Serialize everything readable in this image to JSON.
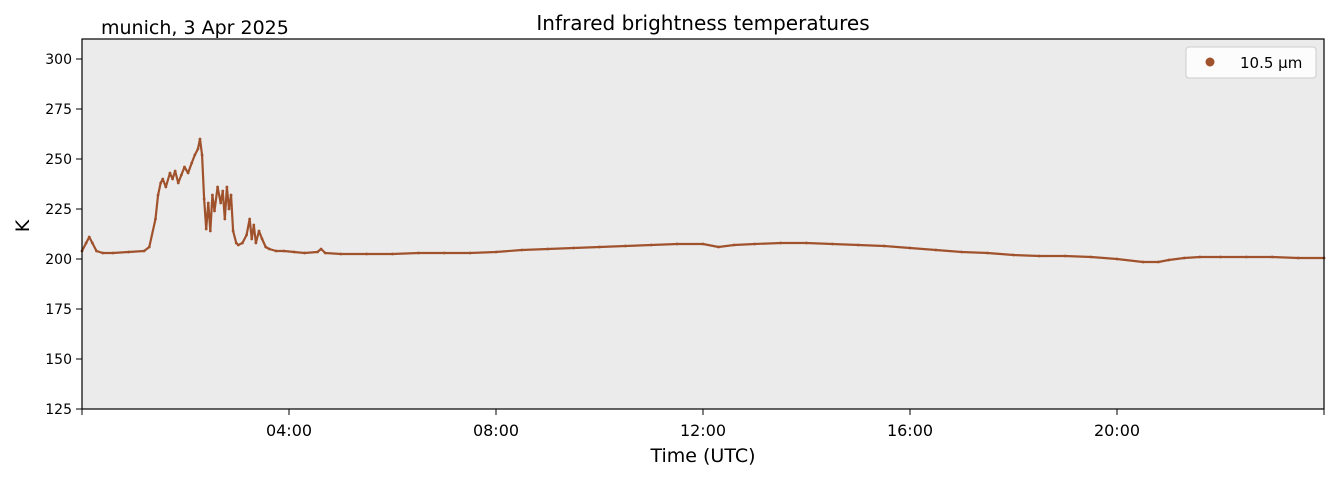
{
  "chart_data": {
    "type": "scatter",
    "title": "Infrared brightness temperatures",
    "location_date": "munich, 3 Apr 2025",
    "xlabel": "Time (UTC)",
    "ylabel": "K",
    "x_unit": "hours UTC",
    "xlim": [
      0,
      24
    ],
    "ylim": [
      125,
      310
    ],
    "x_ticks": [
      4,
      8,
      12,
      16,
      20
    ],
    "x_tick_labels": [
      "04:00",
      "08:00",
      "12:00",
      "16:00",
      "20:00"
    ],
    "y_ticks": [
      125,
      150,
      175,
      200,
      225,
      250,
      275,
      300
    ],
    "y_tick_labels": [
      "125",
      "150",
      "175",
      "200",
      "225",
      "250",
      "275",
      "300"
    ],
    "grid": false,
    "legend_position": "top-right",
    "background_color": "#ebebeb",
    "series": [
      {
        "name": "10.5 µm",
        "color": "#a0522d",
        "x": [
          0,
          0.08,
          0.14,
          0.2,
          0.28,
          0.4,
          0.6,
          0.9,
          1.2,
          1.3,
          1.42,
          1.47,
          1.52,
          1.56,
          1.62,
          1.7,
          1.75,
          1.8,
          1.86,
          1.92,
          1.98,
          2.05,
          2.12,
          2.18,
          2.24,
          2.28,
          2.32,
          2.36,
          2.4,
          2.44,
          2.48,
          2.52,
          2.56,
          2.62,
          2.68,
          2.72,
          2.76,
          2.8,
          2.84,
          2.88,
          2.92,
          2.98,
          3.02,
          3.1,
          3.18,
          3.24,
          3.28,
          3.32,
          3.36,
          3.42,
          3.48,
          3.55,
          3.62,
          3.75,
          3.9,
          4.1,
          4.3,
          4.55,
          4.62,
          4.7,
          5.0,
          5.5,
          6.0,
          6.5,
          7.0,
          7.5,
          8.0,
          8.5,
          9.0,
          9.5,
          10.0,
          10.5,
          11.0,
          11.5,
          12.0,
          12.3,
          12.6,
          13.0,
          13.5,
          14.0,
          14.5,
          15.0,
          15.5,
          16.0,
          16.5,
          17.0,
          17.5,
          18.0,
          18.5,
          19.0,
          19.5,
          20.0,
          20.5,
          20.8,
          21.0,
          21.3,
          21.6,
          22.0,
          22.5,
          23.0,
          23.5,
          24.0
        ],
        "y": [
          204,
          208,
          211,
          208,
          204,
          203,
          203,
          203.5,
          204,
          206,
          220,
          232,
          238,
          240,
          236,
          243,
          240,
          244,
          238,
          242,
          246,
          243,
          248,
          252,
          255,
          260,
          252,
          230,
          215,
          228,
          214,
          232,
          224,
          236,
          228,
          234,
          220,
          236,
          225,
          232,
          214,
          208,
          207,
          208,
          212,
          220,
          210,
          217,
          208,
          214,
          210,
          206,
          205,
          204,
          204,
          203.5,
          203,
          203.5,
          205,
          203,
          202.5,
          202.5,
          202.5,
          203,
          203,
          203,
          203.5,
          204.5,
          205,
          205.5,
          206,
          206.5,
          207,
          207.5,
          207.5,
          206,
          207,
          207.5,
          208,
          208,
          207.5,
          207,
          206.5,
          205.5,
          204.5,
          203.5,
          203,
          202,
          201.5,
          201.5,
          201,
          200,
          198.5,
          198.5,
          199.5,
          200.5,
          201,
          201,
          201,
          201,
          200.5,
          200.5
        ]
      }
    ]
  }
}
